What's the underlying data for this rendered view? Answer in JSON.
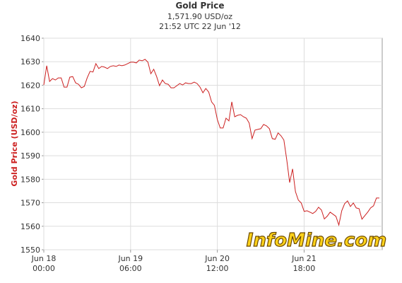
{
  "chart_data": {
    "type": "line",
    "title": "Gold Price",
    "subtitle": "1,571.90 USD/oz",
    "timestamp": "21:52 UTC 22 Jun '12",
    "y_label": "Gold Price (USD/oz)",
    "watermark": "InfoMine.com",
    "grid": true,
    "xlim": [
      0,
      117
    ],
    "xticks": [
      {
        "value": 0,
        "label": "Jun 18\n00:00"
      },
      {
        "value": 30,
        "label": "Jun 19\n06:00"
      },
      {
        "value": 60,
        "label": "Jun 20\n12:00"
      },
      {
        "value": 90,
        "label": "Jun 21\n18:00"
      }
    ],
    "ylim": [
      1550,
      1640
    ],
    "yticks": [
      1550,
      1560,
      1570,
      1580,
      1590,
      1600,
      1610,
      1620,
      1630,
      1640
    ],
    "x": [
      0,
      1,
      2,
      3,
      4,
      5,
      6,
      7,
      8,
      9,
      10,
      11,
      12,
      13,
      14,
      15,
      16,
      17,
      18,
      19,
      20,
      21,
      22,
      23,
      24,
      25,
      26,
      27,
      28,
      29,
      30,
      31,
      32,
      33,
      34,
      35,
      36,
      37,
      38,
      39,
      40,
      41,
      42,
      43,
      44,
      45,
      46,
      47,
      48,
      49,
      50,
      51,
      52,
      53,
      54,
      55,
      56,
      57,
      58,
      59,
      60,
      61,
      62,
      63,
      64,
      65,
      66,
      67,
      68,
      69,
      70,
      71,
      72,
      73,
      74,
      75,
      76,
      77,
      78,
      79,
      80,
      81,
      82,
      83,
      84,
      85,
      86,
      87,
      88,
      89,
      90,
      91,
      92,
      93,
      94,
      95,
      96,
      97,
      98,
      99,
      100,
      101,
      102,
      103,
      104,
      105,
      106,
      107,
      108,
      109,
      110,
      111,
      112,
      113,
      114,
      115,
      116
    ],
    "series": [
      {
        "name": "Gold Price",
        "color": "#cc1f1f",
        "values": [
          1620.1,
          1628.3,
          1621.6,
          1622.8,
          1622.2,
          1623.1,
          1623.1,
          1619.2,
          1619.2,
          1623.4,
          1623.7,
          1621.0,
          1620.4,
          1618.9,
          1619.5,
          1623.1,
          1625.9,
          1625.6,
          1629.2,
          1627.1,
          1628.0,
          1627.7,
          1627.1,
          1628.0,
          1628.3,
          1628.0,
          1628.6,
          1628.3,
          1628.6,
          1629.2,
          1629.8,
          1629.8,
          1629.5,
          1630.7,
          1630.4,
          1631.0,
          1629.8,
          1624.9,
          1626.8,
          1623.7,
          1619.8,
          1622.2,
          1620.7,
          1620.4,
          1618.9,
          1618.9,
          1619.8,
          1620.7,
          1620.1,
          1621.0,
          1620.7,
          1620.7,
          1621.3,
          1620.7,
          1619.2,
          1616.8,
          1618.6,
          1617.1,
          1612.9,
          1611.4,
          1605.4,
          1601.8,
          1601.8,
          1606.0,
          1604.8,
          1612.9,
          1606.6,
          1607.2,
          1607.5,
          1606.6,
          1606.0,
          1603.9,
          1597.3,
          1600.9,
          1601.2,
          1601.5,
          1603.3,
          1602.7,
          1601.5,
          1597.3,
          1597.0,
          1599.7,
          1598.5,
          1596.7,
          1588.2,
          1578.6,
          1584.4,
          1574.7,
          1571.1,
          1569.9,
          1566.3,
          1566.6,
          1566.0,
          1565.4,
          1566.3,
          1568.1,
          1566.9,
          1563.1,
          1564.3,
          1566.0,
          1565.1,
          1564.2,
          1560.5,
          1566.6,
          1569.6,
          1570.8,
          1568.4,
          1569.9,
          1567.8,
          1567.5,
          1563.0,
          1564.5,
          1566.0,
          1567.8,
          1568.7,
          1572.0,
          1572.0
        ]
      }
    ]
  }
}
